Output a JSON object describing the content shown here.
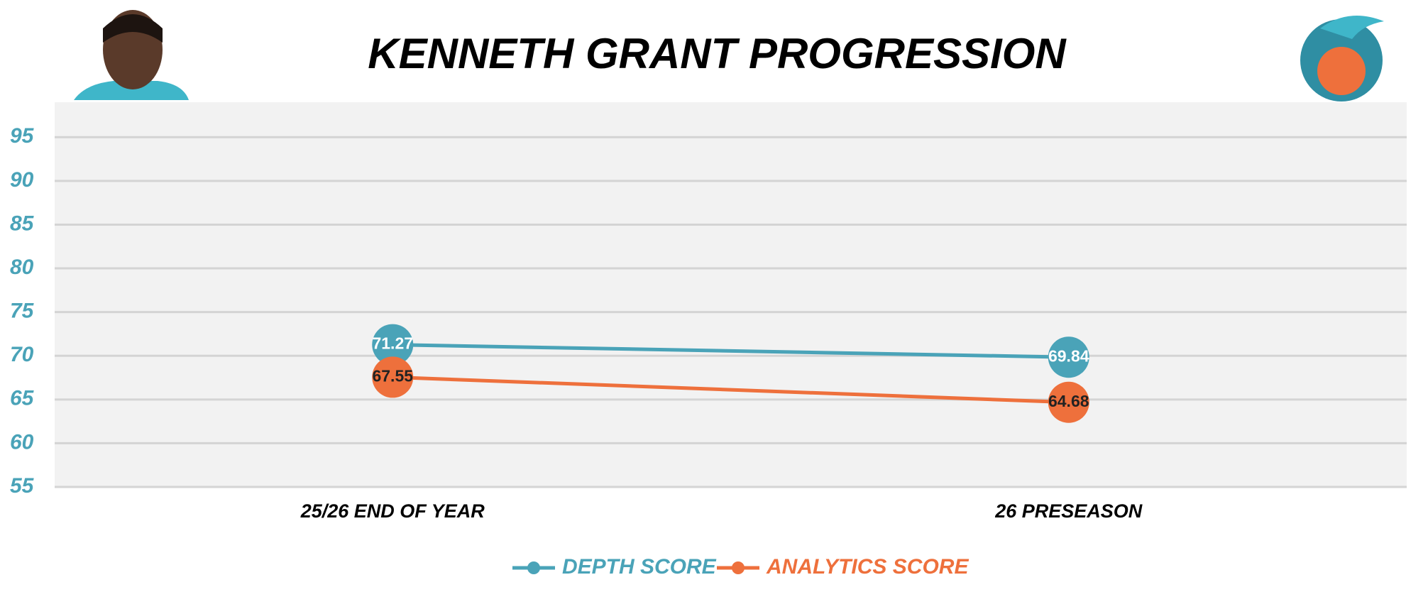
{
  "chart_data": {
    "type": "line",
    "title": "KENNETH GRANT PROGRESSION",
    "categories": [
      "25/26 END OF YEAR",
      "26 PRESEASON"
    ],
    "series": [
      {
        "name": "DEPTH SCORE",
        "color": "#4aa3b8",
        "values": [
          71.27,
          69.84
        ]
      },
      {
        "name": "ANALYTICS SCORE",
        "color": "#ee703c",
        "values": [
          67.55,
          64.68
        ]
      }
    ],
    "ylim": [
      55,
      99
    ],
    "yticks": [
      55,
      60,
      65,
      70,
      75,
      80,
      85,
      90,
      95
    ],
    "grid": true,
    "legend": "bottom"
  }
}
